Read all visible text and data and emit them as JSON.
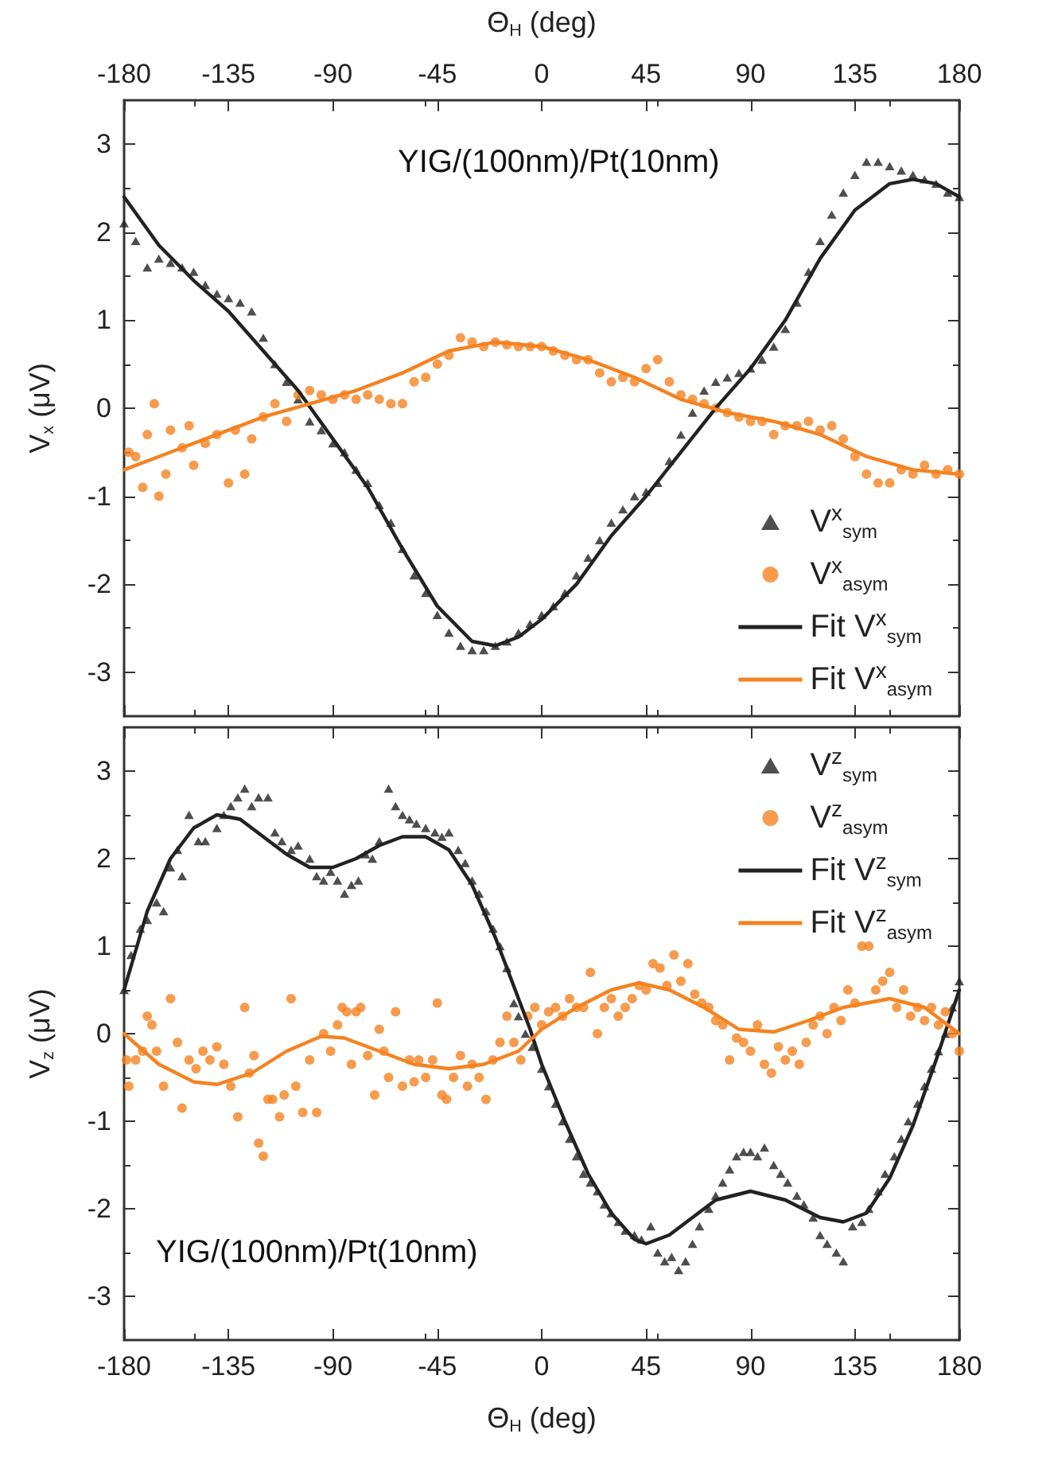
{
  "chart_data": [
    {
      "type": "scatter",
      "xlabel": "Θ$_{H}$ (deg)",
      "ylabel": "V$_{x}$ (μV)",
      "xlim": [
        -180,
        180
      ],
      "xticks": [
        -180,
        -135,
        -90,
        -45,
        0,
        45,
        90,
        135,
        180
      ],
      "ylim": [
        -3.5,
        3.5
      ],
      "yticks": [
        -3,
        -2,
        -1,
        0,
        1,
        2,
        3
      ],
      "grid": false,
      "legend": "bottom right",
      "annotations": [
        "YIG/(100nm)/Pt(10nm)"
      ],
      "series": [
        {
          "name": "V$^{x}$$_{sym}$",
          "type": "scatter",
          "marker": "triangle",
          "color": "#222222",
          "x": [
            -180,
            -175,
            -170,
            -165,
            -160,
            -155,
            -150,
            -145,
            -140,
            -135,
            -130,
            -125,
            -120,
            -115,
            -110,
            -105,
            -100,
            -95,
            -90,
            -85,
            -80,
            -75,
            -70,
            -65,
            -60,
            -55,
            -50,
            -45,
            -40,
            -35,
            -30,
            -25,
            -20,
            -15,
            -10,
            -5,
            0,
            5,
            10,
            15,
            20,
            25,
            30,
            35,
            40,
            45,
            50,
            55,
            60,
            65,
            70,
            75,
            80,
            85,
            90,
            95,
            100,
            105,
            110,
            115,
            120,
            125,
            130,
            135,
            140,
            145,
            150,
            155,
            160,
            165,
            170,
            175,
            180
          ],
          "values": [
            2.1,
            1.9,
            1.6,
            1.7,
            1.65,
            1.6,
            1.55,
            1.4,
            1.3,
            1.25,
            1.2,
            1.1,
            0.8,
            0.5,
            0.3,
            0.1,
            -0.15,
            -0.25,
            -0.4,
            -0.5,
            -0.7,
            -0.85,
            -1.1,
            -1.3,
            -1.6,
            -1.9,
            -2.1,
            -2.35,
            -2.55,
            -2.7,
            -2.75,
            -2.75,
            -2.7,
            -2.65,
            -2.55,
            -2.45,
            -2.35,
            -2.25,
            -2.1,
            -1.9,
            -1.7,
            -1.5,
            -1.3,
            -1.15,
            -1.0,
            -0.95,
            -0.85,
            -0.6,
            -0.3,
            -0.05,
            0.2,
            0.3,
            0.35,
            0.4,
            0.45,
            0.55,
            0.7,
            0.9,
            1.2,
            1.55,
            1.9,
            2.2,
            2.45,
            2.65,
            2.8,
            2.8,
            2.75,
            2.7,
            2.65,
            2.6,
            2.55,
            2.45,
            2.4
          ]
        },
        {
          "name": "V$^{x}$$_{asym}$",
          "type": "scatter",
          "marker": "circle",
          "color": "#f58220",
          "x": [
            -178,
            -175,
            -172,
            -170,
            -167,
            -165,
            -162,
            -160,
            -155,
            -152,
            -150,
            -145,
            -140,
            -135,
            -132,
            -128,
            -125,
            -120,
            -115,
            -110,
            -105,
            -100,
            -95,
            -90,
            -85,
            -80,
            -75,
            -70,
            -65,
            -60,
            -55,
            -50,
            -45,
            -40,
            -35,
            -30,
            -25,
            -20,
            -15,
            -10,
            -5,
            0,
            5,
            10,
            15,
            20,
            25,
            30,
            35,
            40,
            45,
            50,
            55,
            60,
            65,
            70,
            75,
            80,
            85,
            90,
            95,
            100,
            105,
            110,
            115,
            120,
            125,
            130,
            135,
            140,
            145,
            150,
            155,
            160,
            165,
            170,
            175,
            180
          ],
          "values": [
            -0.5,
            -0.55,
            -0.9,
            -0.3,
            0.05,
            -1.0,
            -0.75,
            -0.25,
            -0.45,
            -0.2,
            -0.65,
            -0.4,
            -0.3,
            -0.85,
            -0.25,
            -0.75,
            -0.35,
            -0.1,
            0.05,
            -0.15,
            0.15,
            0.2,
            0.15,
            0.1,
            0.15,
            0.1,
            0.15,
            0.1,
            0.05,
            0.05,
            0.3,
            0.35,
            0.5,
            0.6,
            0.8,
            0.75,
            0.7,
            0.75,
            0.72,
            0.7,
            0.7,
            0.7,
            0.65,
            0.6,
            0.55,
            0.55,
            0.4,
            0.3,
            0.35,
            0.3,
            0.45,
            0.55,
            0.3,
            0.15,
            0.1,
            0.05,
            0.0,
            -0.05,
            -0.1,
            -0.15,
            -0.15,
            -0.3,
            -0.2,
            -0.2,
            -0.15,
            -0.25,
            -0.2,
            -0.35,
            -0.55,
            -0.75,
            -0.85,
            -0.85,
            -0.7,
            -0.75,
            -0.65,
            -0.75,
            -0.7,
            -0.75
          ]
        },
        {
          "name": "Fit V$^{x}$$_{sym}$",
          "type": "line",
          "marker": "none",
          "line_style": "solid",
          "color": "#222222",
          "x": [
            -180,
            -165,
            -150,
            -135,
            -120,
            -105,
            -90,
            -75,
            -60,
            -45,
            -30,
            -20,
            -10,
            0,
            15,
            30,
            45,
            60,
            75,
            90,
            105,
            120,
            135,
            150,
            160,
            170,
            180
          ],
          "values": [
            2.4,
            1.85,
            1.45,
            1.1,
            0.65,
            0.2,
            -0.35,
            -0.9,
            -1.6,
            -2.25,
            -2.65,
            -2.7,
            -2.6,
            -2.4,
            -2.0,
            -1.45,
            -1.0,
            -0.5,
            0.0,
            0.45,
            1.0,
            1.7,
            2.25,
            2.55,
            2.6,
            2.55,
            2.4
          ]
        },
        {
          "name": "Fit V$^{x}$$_{asym}$",
          "type": "line",
          "marker": "none",
          "line_style": "solid",
          "color": "#f58220",
          "x": [
            -180,
            -160,
            -140,
            -120,
            -100,
            -80,
            -60,
            -40,
            -20,
            0,
            20,
            40,
            60,
            80,
            100,
            120,
            140,
            160,
            180
          ],
          "values": [
            -0.7,
            -0.5,
            -0.3,
            -0.1,
            0.05,
            0.2,
            0.4,
            0.65,
            0.75,
            0.7,
            0.55,
            0.35,
            0.1,
            -0.05,
            -0.15,
            -0.3,
            -0.55,
            -0.7,
            -0.75
          ]
        }
      ]
    },
    {
      "type": "scatter",
      "xlabel": "Θ$_{H}$ (deg)",
      "ylabel": "V$_{z}$ (μV)",
      "xlim": [
        -180,
        180
      ],
      "xticks": [
        -180,
        -135,
        -90,
        -45,
        0,
        45,
        90,
        135,
        180
      ],
      "ylim": [
        -3.5,
        3.5
      ],
      "yticks": [
        -3,
        -2,
        -1,
        0,
        1,
        2,
        3
      ],
      "grid": false,
      "legend": "top right",
      "annotations": [
        "YIG/(100nm)/Pt(10nm)"
      ],
      "series": [
        {
          "name": "V$^{z}$$_{sym}$",
          "type": "scatter",
          "marker": "triangle",
          "color": "#222222",
          "x": [
            -180,
            -177,
            -173,
            -170,
            -166,
            -163,
            -160,
            -157,
            -155,
            -152,
            -148,
            -145,
            -140,
            -137,
            -134,
            -131,
            -128,
            -125,
            -122,
            -118,
            -115,
            -112,
            -108,
            -105,
            -100,
            -97,
            -94,
            -91,
            -88,
            -85,
            -82,
            -79,
            -76,
            -73,
            -70,
            -66,
            -63,
            -60,
            -57,
            -54,
            -50,
            -46,
            -43,
            -40,
            -36,
            -33,
            -30,
            -27,
            -24,
            -21,
            -18,
            -15,
            -12,
            -10,
            -7,
            -4,
            0,
            3,
            6,
            9,
            12,
            15,
            18,
            21,
            24,
            27,
            30,
            33,
            36,
            40,
            43,
            47,
            50,
            53,
            56,
            59,
            62,
            65,
            68,
            72,
            75,
            78,
            81,
            84,
            87,
            90,
            93,
            96,
            100,
            103,
            106,
            110,
            113,
            117,
            120,
            123,
            127,
            130,
            134,
            138,
            141,
            145,
            148,
            152,
            155,
            158,
            162,
            165,
            168,
            171,
            174,
            177,
            180
          ],
          "values": [
            0.5,
            0.9,
            1.2,
            1.3,
            1.5,
            1.4,
            1.9,
            2.1,
            1.8,
            2.5,
            2.2,
            2.2,
            2.35,
            2.5,
            2.6,
            2.7,
            2.8,
            2.6,
            2.7,
            2.7,
            2.3,
            2.2,
            2.1,
            2.15,
            2.0,
            1.8,
            1.75,
            1.85,
            1.75,
            1.6,
            1.7,
            1.75,
            2.05,
            2.0,
            2.2,
            2.8,
            2.6,
            2.5,
            2.45,
            2.4,
            2.35,
            2.3,
            2.25,
            2.3,
            2.1,
            1.95,
            1.75,
            1.6,
            1.4,
            1.2,
            1.0,
            0.75,
            0.35,
            0.2,
            0.0,
            -0.15,
            -0.4,
            -0.6,
            -0.8,
            -1.0,
            -1.2,
            -1.4,
            -1.6,
            -1.7,
            -1.8,
            -1.95,
            -2.05,
            -2.15,
            -2.25,
            -2.3,
            -2.35,
            -2.2,
            -2.5,
            -2.6,
            -2.55,
            -2.7,
            -2.6,
            -2.4,
            -2.2,
            -2.0,
            -1.85,
            -1.7,
            -1.55,
            -1.4,
            -1.35,
            -1.35,
            -1.4,
            -1.3,
            -1.5,
            -1.6,
            -1.7,
            -1.85,
            -1.95,
            -2.1,
            -2.3,
            -2.4,
            -2.5,
            -2.6,
            -2.2,
            -2.15,
            -2.0,
            -1.8,
            -1.6,
            -1.4,
            -1.2,
            -1.0,
            -0.8,
            -0.6,
            -0.4,
            -0.2,
            0.0,
            0.3,
            0.6
          ]
        },
        {
          "name": "V$^{z}$$_{asym}$",
          "type": "scatter",
          "marker": "circle",
          "color": "#f58220",
          "x": [
            -179,
            -178,
            -175,
            -172,
            -170,
            -168,
            -166,
            -163,
            -160,
            -157,
            -155,
            -152,
            -149,
            -146,
            -143,
            -140,
            -137,
            -134,
            -131,
            -128,
            -126,
            -124,
            -122,
            -120,
            -118,
            -116,
            -113,
            -111,
            -108,
            -106,
            -103,
            -100,
            -97,
            -94,
            -91,
            -88,
            -86,
            -84,
            -82,
            -80,
            -78,
            -75,
            -72,
            -70,
            -68,
            -66,
            -63,
            -60,
            -57,
            -55,
            -53,
            -50,
            -47,
            -45,
            -43,
            -41,
            -38,
            -35,
            -32,
            -30,
            -27,
            -24,
            -21,
            -18,
            -15,
            -12,
            -9,
            -6,
            -3,
            0,
            3,
            6,
            9,
            12,
            15,
            18,
            21,
            24,
            27,
            30,
            33,
            36,
            39,
            42,
            45,
            48,
            51,
            54,
            57,
            60,
            63,
            66,
            69,
            72,
            75,
            78,
            81,
            84,
            87,
            90,
            93,
            96,
            99,
            102,
            105,
            108,
            111,
            114,
            117,
            120,
            123,
            126,
            129,
            132,
            135,
            138,
            141,
            144,
            147,
            150,
            153,
            156,
            159,
            162,
            165,
            168,
            171,
            174,
            177,
            180
          ],
          "values": [
            -0.3,
            -0.6,
            -0.3,
            -0.2,
            0.2,
            0.1,
            -0.2,
            -0.6,
            0.4,
            -0.1,
            -0.85,
            -0.3,
            -0.4,
            -0.2,
            -0.3,
            -0.15,
            -0.35,
            -0.6,
            -0.95,
            0.3,
            -0.45,
            -0.25,
            -1.25,
            -1.4,
            -0.75,
            -0.75,
            -0.95,
            -0.7,
            0.4,
            -0.6,
            -0.9,
            -0.3,
            -0.9,
            0.0,
            -0.2,
            0.1,
            0.3,
            0.25,
            -0.35,
            0.25,
            0.3,
            -0.25,
            -0.7,
            0.05,
            -0.2,
            -0.5,
            0.25,
            -0.6,
            -0.3,
            -0.55,
            -0.3,
            -0.5,
            -0.3,
            0.35,
            -0.7,
            -0.75,
            -0.5,
            -0.25,
            -0.6,
            -0.35,
            -0.5,
            -0.75,
            -0.3,
            -0.1,
            0.2,
            -0.1,
            -0.3,
            0.2,
            0.3,
            0.1,
            0.25,
            0.3,
            0.2,
            0.4,
            0.3,
            0.3,
            0.7,
            0.0,
            0.3,
            0.4,
            0.2,
            0.3,
            0.4,
            0.55,
            0.5,
            0.8,
            0.75,
            0.55,
            0.9,
            0.6,
            0.8,
            0.45,
            0.35,
            0.3,
            0.15,
            0.1,
            -0.3,
            -0.05,
            -0.1,
            -0.2,
            0.1,
            -0.35,
            -0.45,
            -0.15,
            -0.3,
            -0.2,
            -0.35,
            -0.1,
            0.1,
            0.2,
            0.0,
            0.3,
            0.15,
            0.5,
            0.35,
            1.0,
            1.0,
            0.5,
            0.6,
            0.7,
            0.3,
            0.5,
            0.2,
            0.3,
            0.15,
            0.3,
            0.1,
            0.25,
            0.0,
            -0.2
          ]
        },
        {
          "name": "Fit V$^{z}$$_{sym}$",
          "type": "line",
          "marker": "none",
          "line_style": "solid",
          "color": "#222222",
          "x": [
            -180,
            -170,
            -160,
            -150,
            -140,
            -130,
            -120,
            -110,
            -100,
            -90,
            -80,
            -70,
            -60,
            -50,
            -40,
            -30,
            -20,
            -10,
            -5,
            0,
            10,
            20,
            30,
            40,
            45,
            55,
            65,
            75,
            90,
            105,
            120,
            130,
            140,
            150,
            160,
            170,
            180
          ],
          "values": [
            0.5,
            1.4,
            2.0,
            2.35,
            2.5,
            2.45,
            2.25,
            2.05,
            1.9,
            1.9,
            2.0,
            2.15,
            2.25,
            2.25,
            2.1,
            1.7,
            1.1,
            0.4,
            0.05,
            -0.35,
            -1.0,
            -1.6,
            -2.05,
            -2.35,
            -2.4,
            -2.3,
            -2.1,
            -1.9,
            -1.8,
            -1.9,
            -2.1,
            -2.15,
            -2.05,
            -1.65,
            -1.05,
            -0.3,
            0.5
          ]
        },
        {
          "name": "Fit V$^{z}$$_{asym}$",
          "type": "line",
          "marker": "none",
          "line_style": "solid",
          "color": "#f58220",
          "x": [
            -180,
            -165,
            -150,
            -140,
            -125,
            -110,
            -95,
            -85,
            -70,
            -55,
            -40,
            -25,
            -10,
            0,
            15,
            30,
            42,
            55,
            70,
            85,
            100,
            115,
            130,
            150,
            165,
            180
          ],
          "values": [
            0,
            -0.35,
            -0.55,
            -0.58,
            -0.45,
            -0.2,
            -0.03,
            -0.05,
            -0.2,
            -0.35,
            -0.4,
            -0.35,
            -0.2,
            0.05,
            0.3,
            0.5,
            0.58,
            0.5,
            0.3,
            0.05,
            0.02,
            0.15,
            0.3,
            0.4,
            0.3,
            0
          ]
        }
      ]
    }
  ]
}
